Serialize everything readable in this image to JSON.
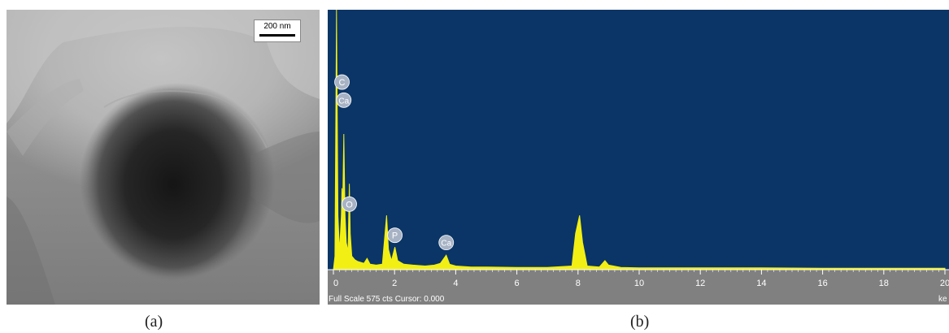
{
  "panel_a": {
    "label": "(a)",
    "scale_bar_text": "200 nm"
  },
  "panel_b": {
    "label": "(b)",
    "status_text": "Full Scale 575 cts Cursor: 0.000",
    "x_unit_partial": "ke"
  },
  "colors": {
    "eds_background": "#0a3566",
    "spectrum": "#f2ef14",
    "axis_band": "#808080",
    "marker_fill": "#a7b3c4"
  },
  "chart_data": {
    "type": "area",
    "title": "",
    "xlabel": "",
    "ylabel": "",
    "xlim": [
      0,
      20
    ],
    "ylim": [
      0,
      575
    ],
    "x_ticks": [
      0,
      2,
      4,
      6,
      8,
      10,
      12,
      14,
      16,
      18,
      20
    ],
    "x_tick_labels": [
      "0",
      "2",
      "4",
      "6",
      "8",
      "10",
      "12",
      "14",
      "16",
      "18",
      "20"
    ],
    "series": [
      {
        "values": [
          [
            0.0,
            0
          ],
          [
            0.05,
            30
          ],
          [
            0.1,
            575
          ],
          [
            0.15,
            120
          ],
          [
            0.2,
            40
          ],
          [
            0.26,
            120
          ],
          [
            0.28,
            180
          ],
          [
            0.3,
            130
          ],
          [
            0.34,
            300
          ],
          [
            0.38,
            120
          ],
          [
            0.42,
            60
          ],
          [
            0.48,
            40
          ],
          [
            0.52,
            190
          ],
          [
            0.55,
            80
          ],
          [
            0.6,
            30
          ],
          [
            0.7,
            22
          ],
          [
            0.8,
            18
          ],
          [
            1.0,
            14
          ],
          [
            1.1,
            25
          ],
          [
            1.2,
            12
          ],
          [
            1.4,
            10
          ],
          [
            1.6,
            12
          ],
          [
            1.74,
            120
          ],
          [
            1.8,
            45
          ],
          [
            1.9,
            20
          ],
          [
            2.01,
            50
          ],
          [
            2.1,
            20
          ],
          [
            2.3,
            12
          ],
          [
            2.6,
            10
          ],
          [
            3.0,
            8
          ],
          [
            3.3,
            10
          ],
          [
            3.5,
            14
          ],
          [
            3.69,
            32
          ],
          [
            3.8,
            12
          ],
          [
            4.0,
            8
          ],
          [
            4.5,
            6
          ],
          [
            5.0,
            6
          ],
          [
            6.0,
            5
          ],
          [
            7.0,
            5
          ],
          [
            7.8,
            8
          ],
          [
            7.92,
            80
          ],
          [
            8.05,
            120
          ],
          [
            8.15,
            60
          ],
          [
            8.3,
            8
          ],
          [
            8.7,
            6
          ],
          [
            8.88,
            20
          ],
          [
            9.0,
            10
          ],
          [
            9.4,
            5
          ],
          [
            10.0,
            4
          ],
          [
            12.0,
            4
          ],
          [
            14.0,
            4
          ],
          [
            16.0,
            3
          ],
          [
            18.0,
            3
          ],
          [
            20.0,
            3
          ]
        ]
      }
    ],
    "annotations": [
      {
        "label": "C",
        "x": 0.28,
        "y": 415
      },
      {
        "label": "Ca",
        "x": 0.34,
        "y": 375
      },
      {
        "label": "O",
        "x": 0.52,
        "y": 145
      },
      {
        "label": "P",
        "x": 2.01,
        "y": 76
      },
      {
        "label": "Ca",
        "x": 3.69,
        "y": 60
      }
    ]
  }
}
